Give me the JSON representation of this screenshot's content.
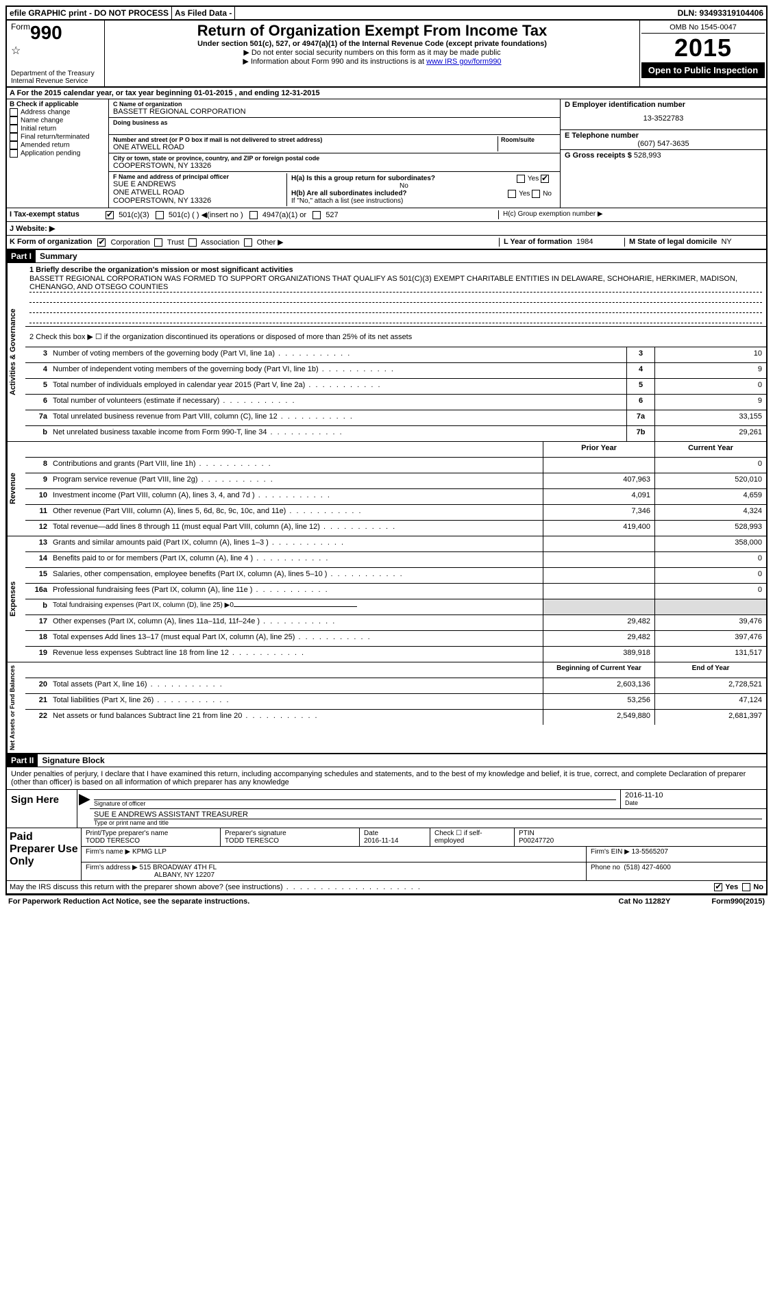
{
  "topBar": {
    "efile": "efile GRAPHIC print - DO NOT PROCESS",
    "asFiled": "As Filed Data -",
    "dln": "DLN: 93493319104406"
  },
  "header": {
    "formPrefix": "Form",
    "formNumber": "990",
    "dept": "Department of the Treasury",
    "irs": "Internal Revenue Service",
    "title": "Return of Organization Exempt From Income Tax",
    "subtitle": "Under section 501(c), 527, or 4947(a)(1) of the Internal Revenue Code (except private foundations)",
    "instr1": "▶ Do not enter social security numbers on this form as it may be made public",
    "instr2Prefix": "▶ Information about Form 990 and its instructions is at ",
    "instr2Link": "www IRS gov/form990",
    "omb": "OMB No 1545-0047",
    "year": "2015",
    "openPublic": "Open to Public Inspection"
  },
  "sectionA": {
    "text": "A  For the 2015 calendar year, or tax year beginning 01-01-2015     , and ending 12-31-2015"
  },
  "checkB": {
    "label": "B  Check if applicable",
    "items": [
      "Address change",
      "Name change",
      "Initial return",
      "Final return/terminated",
      "Amended return",
      "Application pending"
    ]
  },
  "org": {
    "nameLabel": "C Name of organization",
    "name": "BASSETT REGIONAL CORPORATION",
    "dbaLabel": "Doing business as",
    "dba": "",
    "streetLabel": "Number and street (or P O box if mail is not delivered to street address)",
    "roomLabel": "Room/suite",
    "street": "ONE ATWELL ROAD",
    "cityLabel": "City or town, state or province, country, and ZIP or foreign postal code",
    "city": "COOPERSTOWN, NY 13326",
    "officerLabel": "F  Name and address of principal officer",
    "officerName": "SUE E ANDREWS",
    "officerStreet": "ONE ATWELL ROAD",
    "officerCity": "COOPERSTOWN, NY 13326"
  },
  "right": {
    "einLabel": "D Employer identification number",
    "ein": "13-3522783",
    "phoneLabel": "E Telephone number",
    "phone": "(607) 547-3635",
    "grossLabel": "G Gross receipts $",
    "gross": "528,993",
    "haLabel": "H(a)  Is this a group return for subordinates?",
    "haAnswer": "No",
    "hbLabel": "H(b)  Are all subordinates included?",
    "ifNo": "If \"No,\" attach a list  (see instructions)",
    "hcLabel": "H(c)  Group exemption number ▶"
  },
  "taxExempt": {
    "label": "I   Tax-exempt status",
    "opt1": "501(c)(3)",
    "opt2": "501(c) (  ) ◀(insert no )",
    "opt3": "4947(a)(1) or",
    "opt4": "527"
  },
  "website": {
    "label": "J   Website: ▶"
  },
  "orgForm": {
    "label": "K Form of organization",
    "opts": [
      "Corporation",
      "Trust",
      "Association",
      "Other ▶"
    ],
    "yearLabel": "L Year of formation",
    "year": "1984",
    "domicileLabel": "M State of legal domicile",
    "domicile": "NY"
  },
  "partI": {
    "header": "Part I",
    "title": "Summary"
  },
  "mission": {
    "label": "1 Briefly describe the organization's mission or most significant activities",
    "text": "BASSETT REGIONAL CORPORATION WAS FORMED TO SUPPORT ORGANIZATIONS THAT QUALIFY AS 501(C)(3) EXEMPT CHARITABLE ENTITIES IN DELAWARE, SCHOHARIE, HERKIMER, MADISON, CHENANGO, AND OTSEGO COUNTIES"
  },
  "line2": "2  Check this box ▶ ☐ if the organization discontinued its operations or disposed of more than 25% of its net assets",
  "gov": {
    "label": "Activities & Governance",
    "lines": [
      {
        "n": "3",
        "d": "Number of voting members of the governing body (Part VI, line 1a)",
        "cn": "3",
        "v": "10"
      },
      {
        "n": "4",
        "d": "Number of independent voting members of the governing body (Part VI, line 1b)",
        "cn": "4",
        "v": "9"
      },
      {
        "n": "5",
        "d": "Total number of individuals employed in calendar year 2015 (Part V, line 2a)",
        "cn": "5",
        "v": "0"
      },
      {
        "n": "6",
        "d": "Total number of volunteers (estimate if necessary)",
        "cn": "6",
        "v": "9"
      },
      {
        "n": "7a",
        "d": "Total unrelated business revenue from Part VIII, column (C), line 12",
        "cn": "7a",
        "v": "33,155"
      },
      {
        "n": "b",
        "d": "Net unrelated business taxable income from Form 990-T, line 34",
        "cn": "7b",
        "v": "29,261"
      }
    ]
  },
  "rev": {
    "label": "Revenue",
    "h1": "Prior Year",
    "h2": "Current Year",
    "lines": [
      {
        "n": "8",
        "d": "Contributions and grants (Part VIII, line 1h)",
        "p": "",
        "c": "0"
      },
      {
        "n": "9",
        "d": "Program service revenue (Part VIII, line 2g)",
        "p": "407,963",
        "c": "520,010"
      },
      {
        "n": "10",
        "d": "Investment income (Part VIII, column (A), lines 3, 4, and 7d )",
        "p": "4,091",
        "c": "4,659"
      },
      {
        "n": "11",
        "d": "Other revenue (Part VIII, column (A), lines 5, 6d, 8c, 9c, 10c, and 11e)",
        "p": "7,346",
        "c": "4,324"
      },
      {
        "n": "12",
        "d": "Total revenue—add lines 8 through 11 (must equal Part VIII, column (A), line 12)",
        "p": "419,400",
        "c": "528,993"
      }
    ]
  },
  "exp": {
    "label": "Expenses",
    "lines": [
      {
        "n": "13",
        "d": "Grants and similar amounts paid (Part IX, column (A), lines 1–3 )",
        "p": "",
        "c": "358,000"
      },
      {
        "n": "14",
        "d": "Benefits paid to or for members (Part IX, column (A), line 4 )",
        "p": "",
        "c": "0"
      },
      {
        "n": "15",
        "d": "Salaries, other compensation, employee benefits (Part IX, column (A), lines 5–10 )",
        "p": "",
        "c": "0"
      },
      {
        "n": "16a",
        "d": "Professional fundraising fees (Part IX, column (A), line 11e )",
        "p": "",
        "c": "0"
      },
      {
        "n": "b",
        "d": "Total fundraising expenses (Part IX, column (D), line 25) ▶0",
        "p": "grey",
        "c": "grey",
        "small": true
      },
      {
        "n": "17",
        "d": "Other expenses (Part IX, column (A), lines 11a–11d, 11f–24e )",
        "p": "29,482",
        "c": "39,476"
      },
      {
        "n": "18",
        "d": "Total expenses  Add lines 13–17 (must equal Part IX, column (A), line 25)",
        "p": "29,482",
        "c": "397,476"
      },
      {
        "n": "19",
        "d": "Revenue less expenses  Subtract line 18 from line 12",
        "p": "389,918",
        "c": "131,517"
      }
    ]
  },
  "net": {
    "label": "Net Assets or Fund Balances",
    "h1": "Beginning of Current Year",
    "h2": "End of Year",
    "lines": [
      {
        "n": "20",
        "d": "Total assets (Part X, line 16)",
        "p": "2,603,136",
        "c": "2,728,521"
      },
      {
        "n": "21",
        "d": "Total liabilities (Part X, line 26)",
        "p": "53,256",
        "c": "47,124"
      },
      {
        "n": "22",
        "d": "Net assets or fund balances  Subtract line 21 from line 20",
        "p": "2,549,880",
        "c": "2,681,397"
      }
    ]
  },
  "partII": {
    "header": "Part II",
    "title": "Signature Block"
  },
  "perjury": "Under penalties of perjury, I declare that I have examined this return, including accompanying schedules and statements, and to the best of my knowledge and belief, it is true, correct, and complete  Declaration of preparer (other than officer) is based on all information of which preparer has any knowledge",
  "sign": {
    "label": "Sign Here",
    "sigLabel": "Signature of officer",
    "dateLabel": "Date",
    "date": "2016-11-10",
    "name": "SUE E ANDREWS ASSISTANT TREASURER",
    "nameLabel": "Type or print name and title"
  },
  "paid": {
    "label": "Paid Preparer Use Only",
    "prepNameLabel": "Print/Type preparer's name",
    "prepName": "TODD TERESCO",
    "prepSigLabel": "Preparer's signature",
    "prepSig": "TODD TERESCO",
    "prepDateLabel": "Date",
    "prepDate": "2016-11-14",
    "checkIf": "Check ☐ if self-employed",
    "ptinLabel": "PTIN",
    "ptin": "P00247720",
    "firmNameLabel": "Firm's name     ▶",
    "firmName": "KPMG LLP",
    "firmEinLabel": "Firm's EIN ▶",
    "firmEin": "13-5565207",
    "firmAddrLabel": "Firm's address ▶",
    "firmAddr1": "515 BROADWAY 4TH FL",
    "firmAddr2": "ALBANY, NY 12207",
    "phoneLabel": "Phone no",
    "phone": "(518) 427-4600"
  },
  "discuss": "May the IRS discuss this return with the preparer shown above? (see instructions)",
  "footer": {
    "pra": "For Paperwork Reduction Act Notice, see the separate instructions.",
    "cat": "Cat No  11282Y",
    "form": "Form 990 (2015)"
  }
}
